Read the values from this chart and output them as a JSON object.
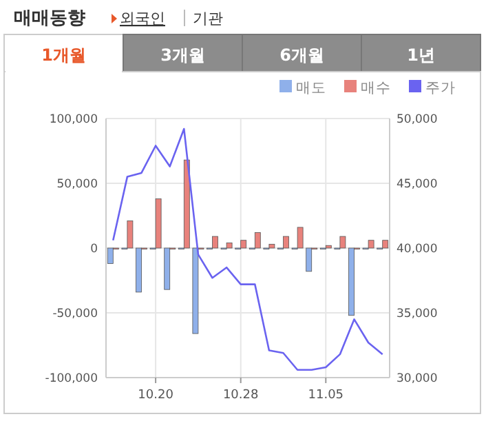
{
  "chart_data": {
    "type": "bar",
    "title": "매매동향",
    "annotations": [
      "외국인",
      "기관",
      "1개월",
      "3개월",
      "6개월",
      "1년"
    ],
    "categories": [
      null,
      null,
      null,
      "10.20",
      null,
      null,
      null,
      null,
      null,
      "10.28",
      null,
      null,
      null,
      null,
      null,
      "11.05",
      null,
      null,
      null,
      null
    ],
    "series": [
      {
        "name": "매도",
        "color": "#8fb0ea",
        "values": [
          -12000,
          0,
          -34000,
          0,
          -32000,
          0,
          -66000,
          0,
          0,
          0,
          0,
          0,
          0,
          0,
          -18000,
          0,
          0,
          -52000,
          0,
          0
        ]
      },
      {
        "name": "매수",
        "color": "#e8827c",
        "values": [
          0,
          21000,
          0,
          38000,
          0,
          68000,
          0,
          9000,
          4000,
          6000,
          12000,
          3000,
          9000,
          16000,
          0,
          2000,
          9000,
          0,
          6000,
          6000
        ]
      },
      {
        "name": "주가",
        "type": "line",
        "axis": "y2",
        "color": "#6a63f0",
        "values": [
          40600,
          45500,
          45800,
          47900,
          46300,
          49200,
          39500,
          37700,
          38500,
          37200,
          37200,
          32100,
          31900,
          30600,
          30600,
          30800,
          31800,
          34500,
          32700,
          31800
        ]
      }
    ],
    "ylim": [
      -100000,
      100000
    ],
    "yticks": [
      {
        "value": -100000,
        "label": "-100,000"
      },
      {
        "value": -50000,
        "label": "-50,000"
      },
      0,
      {
        "value": 50000,
        "label": "50,000"
      },
      {
        "value": 100000,
        "label": "100,000"
      }
    ],
    "y2lim": [
      30000,
      50000
    ],
    "y2ticks": [
      {
        "value": 30000,
        "label": "30,000"
      },
      {
        "value": 35000,
        "label": "35,000"
      },
      {
        "value": 40000,
        "label": "40,000"
      },
      {
        "value": 45000,
        "label": "45,000"
      },
      {
        "value": 50000,
        "label": "50,000"
      }
    ],
    "grid": true,
    "legend": "top right"
  }
}
